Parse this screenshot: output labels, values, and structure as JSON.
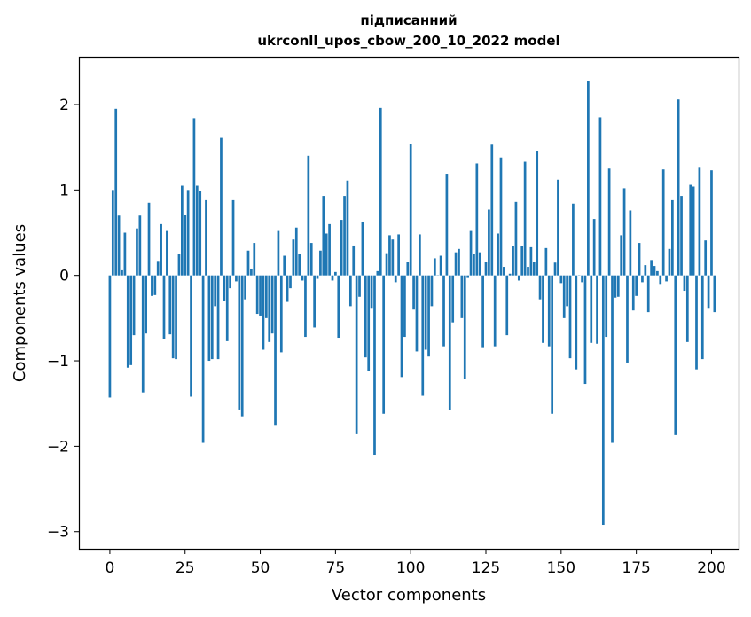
{
  "chart_data": {
    "type": "bar",
    "title_line1": "підписанний",
    "title_line2": "ukrconll_upos_cbow_200_10_2022 model",
    "xlabel": "Vector components",
    "ylabel": "Components values",
    "xlim": [
      -10,
      209
    ],
    "ylim": [
      -3.2,
      2.55
    ],
    "xticks": [
      0,
      25,
      50,
      75,
      100,
      125,
      150,
      175,
      200
    ],
    "yticks": [
      -3,
      -2,
      -1,
      0,
      1,
      2
    ],
    "ytick_labels": [
      "−3",
      "−2",
      "−1",
      "0",
      "1",
      "2"
    ],
    "grid": false,
    "bar_color": "#1f77b4",
    "values": [
      -1.43,
      1.0,
      1.95,
      0.7,
      0.06,
      0.5,
      -1.08,
      -1.05,
      -0.7,
      0.55,
      0.7,
      -1.37,
      -0.68,
      0.85,
      -0.24,
      -0.23,
      0.17,
      0.6,
      -0.74,
      0.52,
      -0.69,
      -0.97,
      -0.98,
      0.25,
      1.05,
      0.71,
      1.0,
      -1.42,
      1.84,
      1.05,
      0.99,
      -1.96,
      0.88,
      -1.0,
      -0.98,
      -0.36,
      -0.98,
      1.61,
      -0.3,
      -0.77,
      -0.15,
      0.88,
      -0.07,
      -1.57,
      -1.65,
      -0.28,
      0.29,
      0.08,
      0.38,
      -0.45,
      -0.47,
      -0.87,
      -0.5,
      -0.78,
      -0.68,
      -1.75,
      0.52,
      -0.9,
      0.23,
      -0.31,
      -0.15,
      0.42,
      0.56,
      0.25,
      -0.06,
      -0.72,
      1.4,
      0.38,
      -0.61,
      -0.04,
      0.29,
      0.93,
      0.49,
      0.6,
      -0.06,
      0.04,
      -0.73,
      0.65,
      0.93,
      1.11,
      -0.36,
      0.35,
      -1.86,
      -0.25,
      0.63,
      -0.96,
      -1.12,
      -0.38,
      -2.1,
      0.05,
      1.96,
      -1.62,
      0.26,
      0.47,
      0.42,
      -0.08,
      0.48,
      -1.19,
      -0.72,
      0.16,
      1.54,
      -0.4,
      -0.89,
      0.48,
      -1.41,
      -0.87,
      -0.95,
      -0.36,
      0.2,
      0.0,
      0.23,
      -0.83,
      1.19,
      -1.58,
      -0.55,
      0.27,
      0.31,
      -0.5,
      -1.21,
      -0.03,
      0.52,
      0.25,
      1.31,
      0.27,
      -0.84,
      0.16,
      0.77,
      1.53,
      -0.83,
      0.49,
      1.38,
      0.1,
      -0.7,
      0.02,
      0.34,
      0.86,
      -0.06,
      0.34,
      1.33,
      0.1,
      0.33,
      0.16,
      1.46,
      -0.28,
      -0.79,
      0.32,
      -0.83,
      -1.62,
      0.15,
      1.12,
      -0.09,
      -0.5,
      -0.36,
      -0.97,
      0.84,
      -1.1,
      0.0,
      -0.08,
      -1.27,
      2.28,
      -0.79,
      0.66,
      -0.8,
      1.85,
      -2.92,
      -0.72,
      1.25,
      -1.96,
      -0.26,
      -0.25,
      0.47,
      1.02,
      -1.02,
      0.76,
      -0.41,
      -0.24,
      0.38,
      -0.08,
      0.12,
      -0.43,
      0.18,
      0.11,
      0.05,
      -0.1,
      1.24,
      -0.07,
      0.31,
      0.88,
      -1.87,
      2.06,
      0.93,
      -0.18,
      -0.78,
      1.06,
      1.04,
      -1.1,
      1.27,
      -0.98,
      0.41,
      -0.38,
      1.23,
      -0.43
    ]
  }
}
